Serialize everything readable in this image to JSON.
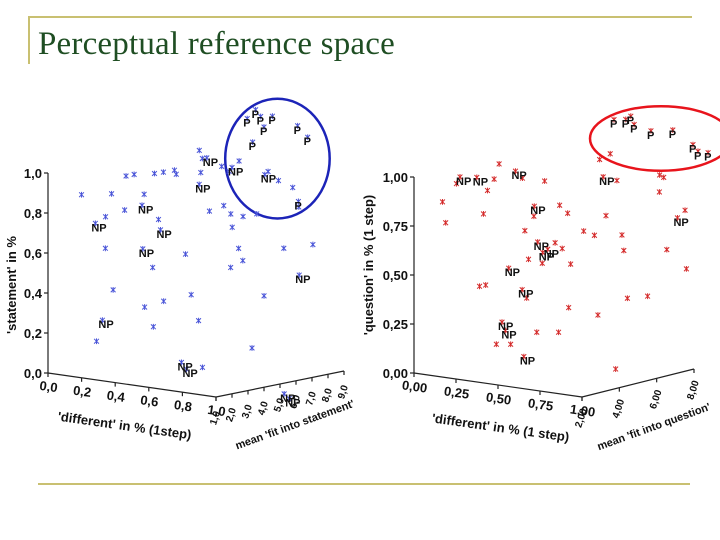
{
  "slide": {
    "title": "Perceptual reference space",
    "colors": {
      "title": "#1f4e23",
      "frame": "#c9c071"
    }
  },
  "chart_data": [
    {
      "type": "scatter",
      "name": "statement",
      "xlabel": "'different' in % (1step)",
      "ylabel": "'statement' in %",
      "zlabel": "mean 'fit into statement'",
      "xlim": [
        0,
        1
      ],
      "ylim": [
        0,
        1
      ],
      "zlim": [
        1,
        9
      ],
      "x_ticks": [
        "0,0",
        "0,2",
        "0,4",
        "0,6",
        "0,8",
        "1,0"
      ],
      "y_ticks": [
        "0,0",
        "0,2",
        "0,4",
        "0,6",
        "0,8",
        "1,0"
      ],
      "z_ticks": [
        "1,0",
        "2,0",
        "3,0",
        "4,0",
        "5,0",
        "6,0",
        "7,0",
        "8,0",
        "9,0"
      ],
      "marker_color": "#4a55d8",
      "ellipse_color": "#1c24b8",
      "labels": [
        {
          "text": "P",
          "x": 0.4,
          "y": 1.15,
          "z": 9.0
        },
        {
          "text": "P",
          "x": 0.45,
          "y": 1.2,
          "z": 9.0
        },
        {
          "text": "P",
          "x": 0.48,
          "y": 1.17,
          "z": 9.0
        },
        {
          "text": "P",
          "x": 0.55,
          "y": 1.18,
          "z": 9.0
        },
        {
          "text": "P",
          "x": 0.5,
          "y": 1.12,
          "z": 9.0
        },
        {
          "text": "P",
          "x": 0.7,
          "y": 1.15,
          "z": 9.0
        },
        {
          "text": "P",
          "x": 0.76,
          "y": 1.1,
          "z": 9.0
        },
        {
          "text": "P",
          "x": 0.48,
          "y": 1.05,
          "z": 8.5
        },
        {
          "text": "P",
          "x": 0.8,
          "y": 0.8,
          "z": 8.0
        },
        {
          "text": "NP",
          "x": 0.35,
          "y": 0.98,
          "z": 7.0
        },
        {
          "text": "NP",
          "x": 0.5,
          "y": 0.95,
          "z": 7.0
        },
        {
          "text": "NP",
          "x": 0.6,
          "y": 0.91,
          "z": 8.0
        },
        {
          "text": "NP",
          "x": 0.4,
          "y": 0.87,
          "z": 6.0
        },
        {
          "text": "NP",
          "x": 0.25,
          "y": 0.78,
          "z": 4.0
        },
        {
          "text": "NP",
          "x": 0.02,
          "y": 0.67,
          "z": 3.5
        },
        {
          "text": "NP",
          "x": 0.36,
          "y": 0.67,
          "z": 4.0
        },
        {
          "text": "NP",
          "x": 0.35,
          "y": 0.59,
          "z": 3.0
        },
        {
          "text": "NP",
          "x": 0.9,
          "y": 0.46,
          "z": 7.0
        },
        {
          "text": "NP",
          "x": 0.3,
          "y": 0.26,
          "z": 1.0
        },
        {
          "text": "NP",
          "x": 0.58,
          "y": 0.05,
          "z": 3.0
        },
        {
          "text": "NP",
          "x": 0.61,
          "y": 0.02,
          "z": 3.0
        },
        {
          "text": "NP",
          "x": 0.62,
          "y": -0.2,
          "z": 9.0
        },
        {
          "text": "NP",
          "x": 0.65,
          "y": -0.22,
          "z": 9.0
        }
      ]
    },
    {
      "type": "scatter",
      "name": "question",
      "xlabel": "'different' in % (1 step)",
      "ylabel": "'question' in % (1 step)",
      "zlabel": "mean 'fit into question'",
      "xlim": [
        0,
        1
      ],
      "ylim": [
        0,
        1
      ],
      "zlim": [
        2,
        8
      ],
      "x_ticks": [
        "0,00",
        "0,25",
        "0,50",
        "0,75",
        "1,00"
      ],
      "y_ticks": [
        "0,00",
        "0,25",
        "0,50",
        "0,75",
        "1,00"
      ],
      "z_ticks": [
        "2,00",
        "4,00",
        "6,00",
        "8,00"
      ],
      "marker_color": "#d42a2a",
      "ellipse_color": "#e8141c",
      "labels": [
        {
          "text": "P",
          "x": 0.5,
          "y": 1.17,
          "z": 8.0
        },
        {
          "text": "P",
          "x": 0.57,
          "y": 1.18,
          "z": 8.0
        },
        {
          "text": "P",
          "x": 0.6,
          "y": 1.2,
          "z": 8.0
        },
        {
          "text": "P",
          "x": 0.62,
          "y": 1.16,
          "z": 8.0
        },
        {
          "text": "P",
          "x": 0.72,
          "y": 1.14,
          "z": 8.0
        },
        {
          "text": "P",
          "x": 0.85,
          "y": 1.16,
          "z": 8.0
        },
        {
          "text": "P",
          "x": 0.97,
          "y": 1.1,
          "z": 8.0
        },
        {
          "text": "P",
          "x": 1.0,
          "y": 1.07,
          "z": 8.0
        },
        {
          "text": "P",
          "x": 1.06,
          "y": 1.07,
          "z": 8.0
        },
        {
          "text": "NP",
          "x": 0.25,
          "y": 0.99,
          "z": 2.0
        },
        {
          "text": "NP",
          "x": 0.35,
          "y": 1.0,
          "z": 2.0
        },
        {
          "text": "NP",
          "x": 0.58,
          "y": 1.06,
          "z": 2.0
        },
        {
          "text": "NP",
          "x": 0.88,
          "y": 1.02,
          "z": 4.0
        },
        {
          "text": "NP",
          "x": 0.47,
          "y": 0.82,
          "z": 4.0
        },
        {
          "text": "NP",
          "x": 1.1,
          "y": 0.79,
          "z": 6.0
        },
        {
          "text": "NP",
          "x": 0.49,
          "y": 0.64,
          "z": 4.0
        },
        {
          "text": "NP",
          "x": 0.52,
          "y": 0.59,
          "z": 4.0
        },
        {
          "text": "NP",
          "x": 0.55,
          "y": 0.61,
          "z": 4.0
        },
        {
          "text": "NP",
          "x": 0.54,
          "y": 0.56,
          "z": 2.0
        },
        {
          "text": "NP",
          "x": 0.62,
          "y": 0.46,
          "z": 2.0
        },
        {
          "text": "NP",
          "x": 0.5,
          "y": 0.28,
          "z": 2.0
        },
        {
          "text": "NP",
          "x": 0.52,
          "y": 0.24,
          "z": 2.0
        },
        {
          "text": "NP",
          "x": 0.63,
          "y": 0.12,
          "z": 2.0
        }
      ]
    }
  ]
}
